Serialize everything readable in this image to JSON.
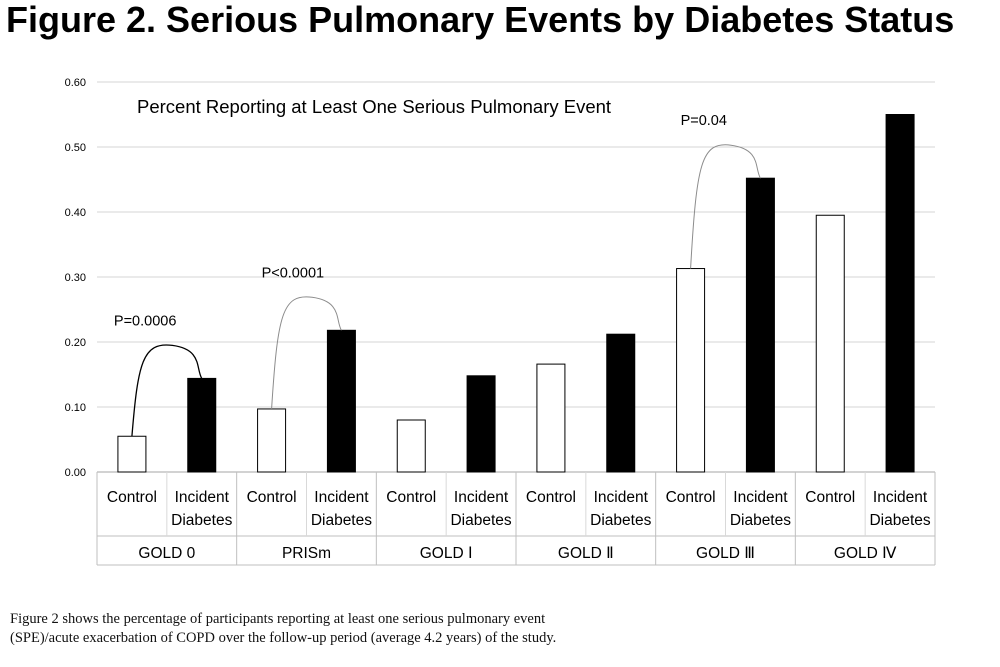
{
  "figure": {
    "title": "Figure 2. Serious Pulmonary Events by Diabetes Status",
    "caption_lines": [
      "Figure 2 shows the percentage of participants reporting at least one serious pulmonary event",
      "(SPE)/acute exacerbation of COPD over the follow-up period (average 4.2 years) of the study."
    ]
  },
  "chart_data": {
    "type": "bar",
    "title": "Percent Reporting at Least One Serious Pulmonary Event",
    "xlabel": "",
    "ylabel": "",
    "ylim": [
      0,
      0.6
    ],
    "yticks": [
      "0.00",
      "0.10",
      "0.20",
      "0.30",
      "0.40",
      "0.50",
      "0.60"
    ],
    "grid": true,
    "groups": [
      "GOLD 0",
      "PRISm",
      "GOLD Ⅰ",
      "GOLD Ⅱ",
      "GOLD Ⅲ",
      "GOLD Ⅳ"
    ],
    "subcategories": [
      [
        "Control"
      ],
      [
        "Incident",
        "Diabetes"
      ]
    ],
    "series": [
      {
        "key": "control",
        "values": [
          0.055,
          0.097,
          0.08,
          0.166,
          0.313,
          0.395
        ],
        "color": "#ffffff"
      },
      {
        "key": "incident_diabetes",
        "values": [
          0.144,
          0.218,
          0.148,
          0.212,
          0.452,
          0.55
        ],
        "color": "#000000"
      }
    ],
    "annotations": [
      {
        "group": 0,
        "text": "P=0.0006"
      },
      {
        "group": 1,
        "text": "P<0.0001"
      },
      {
        "group": 4,
        "text": "P=0.04"
      }
    ]
  }
}
